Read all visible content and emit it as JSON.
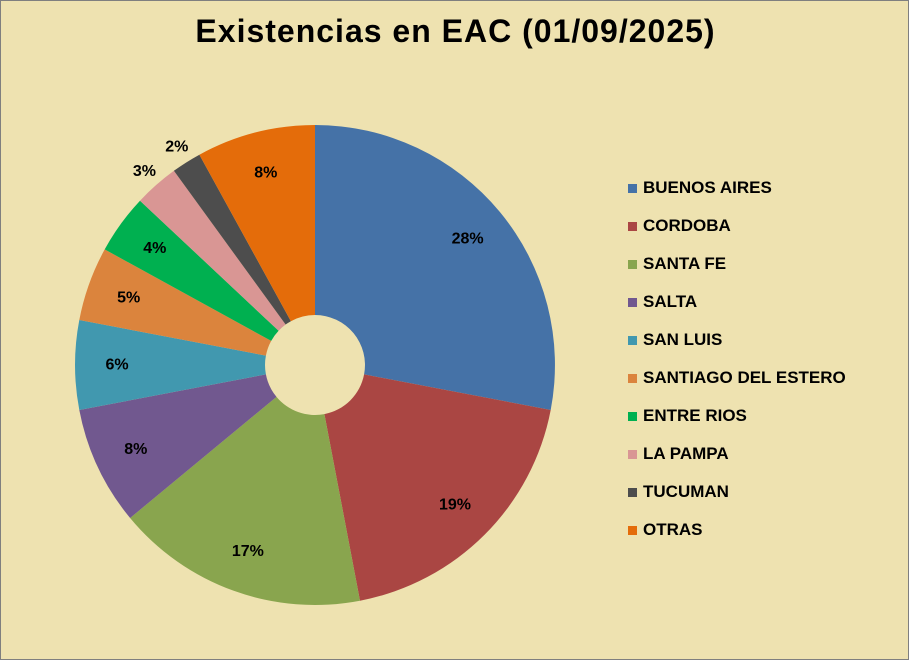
{
  "chart_data": {
    "type": "pie",
    "title": "Existencias en EAC (01/09/2025)",
    "legend_position": "right",
    "start": "12 o'clock",
    "direction": "clockwise",
    "slices": [
      {
        "label": "BUENOS AIRES",
        "value": 28,
        "display": "28%",
        "color": "#4572a7"
      },
      {
        "label": "CORDOBA",
        "value": 19,
        "display": "19%",
        "color": "#aa4643"
      },
      {
        "label": "SANTA FE",
        "value": 17,
        "display": "17%",
        "color": "#89a54e"
      },
      {
        "label": "SALTA",
        "value": 8,
        "display": "8%",
        "color": "#71588f"
      },
      {
        "label": "SAN LUIS",
        "value": 6,
        "display": "6%",
        "color": "#4198af"
      },
      {
        "label": "SANTIAGO DEL ESTERO",
        "value": 5,
        "display": "5%",
        "color": "#db843d"
      },
      {
        "label": "ENTRE RIOS",
        "value": 4,
        "display": "4%",
        "color": "#00b050"
      },
      {
        "label": "LA PAMPA",
        "value": 3,
        "display": "3%",
        "color": "#d99694"
      },
      {
        "label": "TUCUMAN",
        "value": 2,
        "display": "2%",
        "color": "#4d4d4d"
      },
      {
        "label": "OTRAS",
        "value": 8,
        "display": "8%",
        "color": "#e46c0a"
      }
    ]
  },
  "colors": {
    "background": "#eee2b0",
    "border": "#7f7f7f"
  }
}
